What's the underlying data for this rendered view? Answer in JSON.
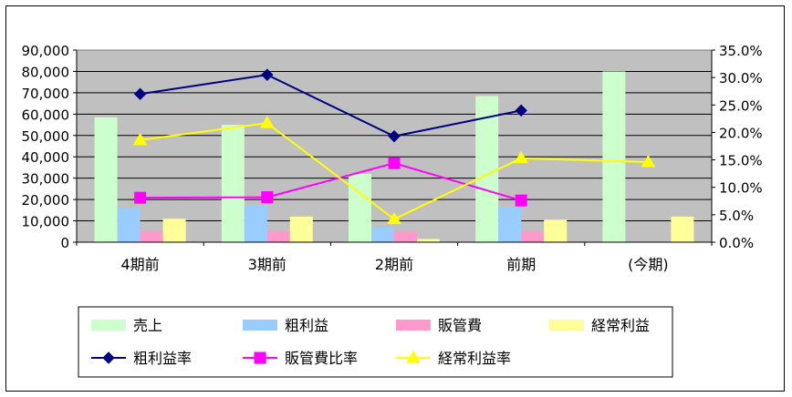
{
  "chart_data": {
    "type": "bar+line",
    "categories": [
      "4期前",
      "3期前",
      "2期前",
      "前期",
      "(今期)"
    ],
    "bar_series": [
      {
        "name": "売上",
        "color": "#ccffcc",
        "values": [
          58500,
          55000,
          32000,
          68500,
          80000
        ]
      },
      {
        "name": "粗利益",
        "color": "#99ccff",
        "values": [
          16000,
          17500,
          7000,
          16500,
          0
        ]
      },
      {
        "name": "販管費",
        "color": "#ff99cc",
        "values": [
          5000,
          5000,
          5000,
          5000,
          0
        ]
      },
      {
        "name": "経常利益",
        "color": "#ffff99",
        "values": [
          11000,
          12000,
          1500,
          10500,
          12000
        ]
      }
    ],
    "line_series": [
      {
        "name": "粗利益率",
        "color": "#000080",
        "marker": "diamond",
        "values": [
          0.27,
          0.305,
          0.193,
          0.24,
          null
        ]
      },
      {
        "name": "販管費比率",
        "color": "#ff00ff",
        "marker": "square",
        "values": [
          0.081,
          0.082,
          0.144,
          0.076,
          null
        ]
      },
      {
        "name": "経常利益率",
        "color": "#ffff00",
        "marker": "triangle",
        "values": [
          0.186,
          0.217,
          0.042,
          0.153,
          0.146
        ]
      }
    ],
    "y_left": {
      "min": 0,
      "max": 90000,
      "ticks": [
        "0",
        "10,000",
        "20,000",
        "30,000",
        "40,000",
        "50,000",
        "60,000",
        "70,000",
        "80,000",
        "90,000"
      ]
    },
    "y_right": {
      "min": 0,
      "max": 0.35,
      "ticks": [
        "0.0%",
        "5.0%",
        "10.0%",
        "15.0%",
        "20.0%",
        "25.0%",
        "30.0%",
        "35.0%"
      ]
    },
    "plot_background": "#c0c0c0",
    "grid": true,
    "legend_position": "bottom"
  }
}
